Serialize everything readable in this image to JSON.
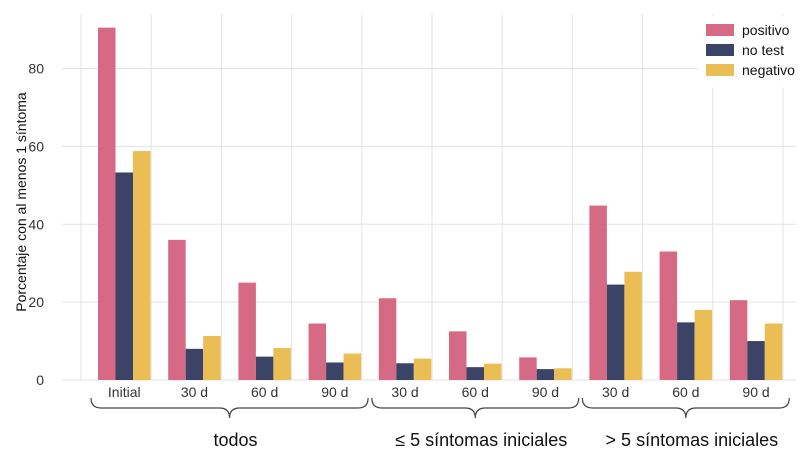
{
  "chart_data": {
    "type": "bar",
    "ylabel": "Porcentaje con al menos 1 síntoma",
    "ylim": [
      0,
      94
    ],
    "yticks": [
      0,
      20,
      40,
      60,
      80
    ],
    "grid": true,
    "legend_position": "top-right",
    "categories": [
      "Initial",
      "30 d",
      "60 d",
      "90 d",
      "30 d",
      "60 d",
      "90 d",
      "30 d",
      "60 d",
      "90 d"
    ],
    "groups": [
      {
        "label": "todos",
        "categories": [
          0,
          1,
          2,
          3
        ]
      },
      {
        "label": "≤ 5 síntomas iniciales",
        "categories": [
          4,
          5,
          6
        ]
      },
      {
        "label": "> 5 síntomas iniciales",
        "categories": [
          7,
          8,
          9
        ]
      }
    ],
    "series": [
      {
        "name": "positivo",
        "color": "#d66a85",
        "values": [
          90.5,
          36,
          25,
          14.5,
          21,
          12.5,
          5.8,
          44.8,
          33,
          20.5
        ]
      },
      {
        "name": "no test",
        "color": "#3b4366",
        "values": [
          53.3,
          8,
          6,
          4.5,
          4.3,
          3.3,
          2.8,
          24.5,
          14.8,
          10
        ]
      },
      {
        "name": "negativo",
        "color": "#ebbe55",
        "values": [
          58.8,
          11.3,
          8.2,
          6.8,
          5.5,
          4.2,
          3,
          27.8,
          18,
          14.5
        ]
      }
    ]
  }
}
